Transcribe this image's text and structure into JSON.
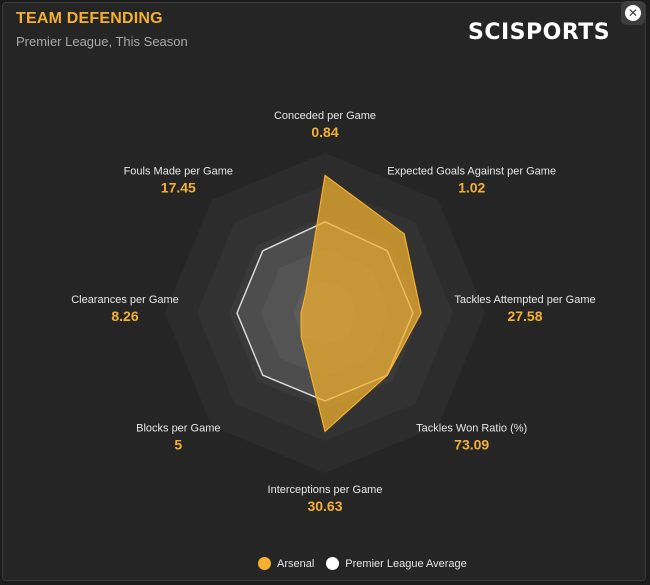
{
  "header": {
    "title": "TEAM DEFENDING",
    "subtitle": "Premier League, This Season",
    "logo_text": "SCISPORTS"
  },
  "close_button": {
    "icon": "close-icon",
    "label": "✕"
  },
  "chart_data": {
    "type": "radar",
    "axes": [
      {
        "label": "Conceded per Game",
        "value": "0.84"
      },
      {
        "label": "Expected Goals Against per Game",
        "value": "1.02"
      },
      {
        "label": "Tackles Attempted per Game",
        "value": "27.58"
      },
      {
        "label": "Tackles Won Ratio (%)",
        "value": "73.09"
      },
      {
        "label": "Interceptions per Game",
        "value": "30.63"
      },
      {
        "label": "Blocks per Game",
        "value": "5"
      },
      {
        "label": "Clearances per Game",
        "value": "8.26"
      },
      {
        "label": "Fouls Made per Game",
        "value": "17.45"
      }
    ],
    "scale": [
      0,
      1
    ],
    "series": [
      {
        "name": "Arsenal",
        "color": "#f5b12e",
        "values": [
          0.86,
          0.7,
          0.6,
          0.55,
          0.74,
          0.21,
          0.15,
          0.17
        ]
      },
      {
        "name": "Premier League Average",
        "color": "#ffffff",
        "values": [
          0.57,
          0.55,
          0.55,
          0.55,
          0.55,
          0.55,
          0.55,
          0.55
        ]
      }
    ],
    "legend_position": "bottom"
  },
  "colors": {
    "accent": "#f5b12e",
    "label": "#e8e8e8",
    "background": "#252525"
  }
}
